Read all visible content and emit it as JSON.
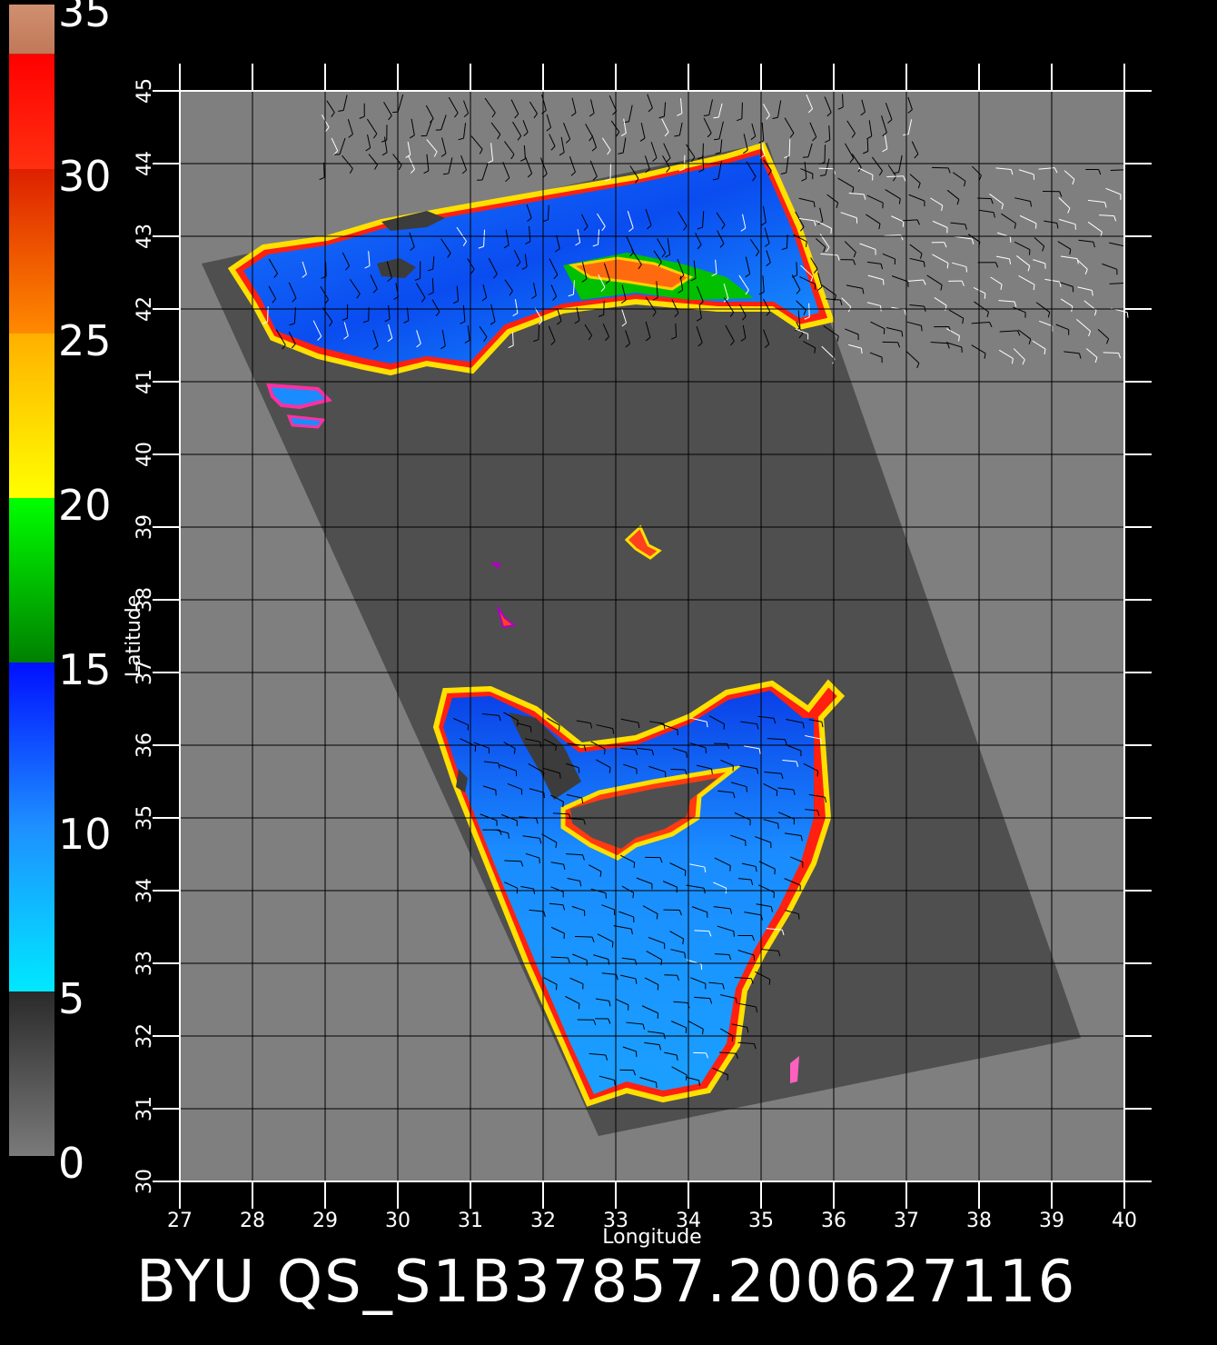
{
  "colorbar": {
    "labels": [
      "0",
      "5",
      "10",
      "15",
      "20",
      "25",
      "30",
      "35"
    ],
    "bands": [
      {
        "from": 0,
        "to": 5,
        "colors": [
          "#7a7a7a",
          "#2a2a2a"
        ]
      },
      {
        "from": 5,
        "to": 10,
        "colors": [
          "#00e8ff",
          "#1e90ff"
        ]
      },
      {
        "from": 10,
        "to": 15,
        "colors": [
          "#1e90ff",
          "#0010ff"
        ]
      },
      {
        "from": 15,
        "to": 20,
        "colors": [
          "#008000",
          "#00ff00"
        ]
      },
      {
        "from": 20,
        "to": 25,
        "colors": [
          "#ffff00",
          "#ffb000"
        ]
      },
      {
        "from": 25,
        "to": 30,
        "colors": [
          "#ff8a00",
          "#dd2000"
        ]
      },
      {
        "from": 30,
        "to": 33.5,
        "colors": [
          "#ff3010",
          "#ff0000"
        ]
      },
      {
        "from": 33.5,
        "to": 35,
        "colors": [
          "#c07858",
          "#d09070"
        ]
      }
    ]
  },
  "map": {
    "lon_range": [
      27,
      40
    ],
    "lat_range": [
      30,
      45
    ],
    "lon_ticks": [
      "27",
      "28",
      "29",
      "30",
      "31",
      "32",
      "33",
      "34",
      "35",
      "36",
      "37",
      "38",
      "39",
      "40"
    ],
    "lat_ticks": [
      "30",
      "31",
      "32",
      "33",
      "34",
      "35",
      "36",
      "37",
      "38",
      "39",
      "40",
      "41",
      "42",
      "43",
      "44",
      "45"
    ],
    "xlabel": "Longitude",
    "ylabel": "Latitude",
    "colors": {
      "land": "#7f7f7f",
      "swath": "#4f4f4f",
      "grid": "#000000",
      "axes": "#ffffff"
    }
  },
  "caption": "BYU  QS_S1B37857.200627116"
}
